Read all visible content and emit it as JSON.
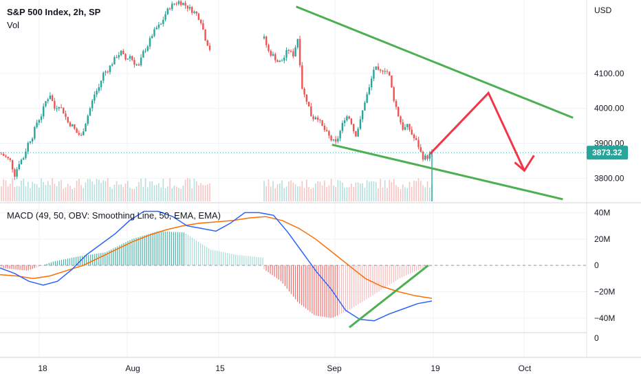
{
  "header": {
    "symbol_title": "S&P 500 Index, 2h, SP",
    "volume_label": "Vol",
    "indicator_label": "MACD (49, 50, OBV: Smoothing Line, 50, EMA, EMA)"
  },
  "price_axis": {
    "currency": "USD",
    "ticks": [
      {
        "value": 4100,
        "label": "4100.00"
      },
      {
        "value": 4000,
        "label": "4000.00"
      },
      {
        "value": 3900,
        "label": "3900.00"
      },
      {
        "value": 3800,
        "label": "3800.00"
      }
    ],
    "last_price": {
      "value": 3873.32,
      "label": "3873.32"
    }
  },
  "indicator_axis": {
    "ticks": [
      {
        "value": 40,
        "label": "40M"
      },
      {
        "value": 20,
        "label": "20M"
      },
      {
        "value": 0,
        "label": "0"
      },
      {
        "value": -20,
        "label": "−20M"
      },
      {
        "value": -40,
        "label": "−40M"
      }
    ],
    "extra_tick": "0"
  },
  "time_axis": {
    "labels": [
      "18",
      "Aug",
      "15",
      "Sep",
      "19",
      "Oct"
    ]
  },
  "colors": {
    "up": "#26a69a",
    "down": "#ef5350",
    "macd": "#2962ff",
    "signal": "#ff6d00",
    "trendline": "#4caf50",
    "projection": "#f23645",
    "last_price_badge": "#26a69a"
  },
  "chart_data": {
    "type": "candlestick",
    "price_anchors": [
      [
        3870,
        3860
      ],
      [
        3850,
        3810
      ],
      [
        3845,
        3860
      ],
      [
        3900,
        3920
      ],
      [
        3960,
        3980
      ],
      [
        4020,
        4040
      ],
      [
        4000,
        4010
      ],
      [
        3990,
        3960
      ],
      [
        3950,
        3930
      ],
      [
        3920,
        3960
      ],
      [
        4000,
        4040
      ],
      [
        4060,
        4100
      ],
      [
        4110,
        4130
      ],
      [
        4150,
        4160
      ],
      [
        4140,
        4150
      ],
      [
        4130,
        4120
      ],
      [
        4160,
        4180
      ],
      [
        4210,
        4230
      ],
      [
        4240,
        4270
      ],
      [
        4290,
        4300
      ],
      [
        4305,
        4300
      ],
      [
        4290,
        4280
      ],
      [
        4270,
        4250
      ],
      [
        4200,
        4170
      ],
      [
        4200,
        4160
      ],
      [
        4150,
        4130
      ],
      [
        4140,
        4170
      ],
      [
        4150,
        4200
      ],
      [
        4050,
        4020
      ],
      [
        3970,
        3980
      ],
      [
        3950,
        3930
      ],
      [
        3910,
        3900
      ],
      [
        3940,
        3980
      ],
      [
        3970,
        3920
      ],
      [
        3960,
        4020
      ],
      [
        4060,
        4120
      ],
      [
        4100,
        4115
      ],
      [
        4100,
        4030
      ],
      [
        3980,
        3940
      ],
      [
        3950,
        3920
      ],
      [
        3900,
        3860
      ],
      [
        3860,
        3873
      ]
    ],
    "macd_line": [
      -2,
      -6,
      -12,
      -15,
      -12,
      -3,
      8,
      16,
      24,
      34,
      41,
      41,
      37,
      30,
      28,
      26,
      32,
      40,
      40,
      38,
      25,
      10,
      -5,
      -18,
      -34,
      -41,
      -42,
      -37,
      -33,
      -29,
      -27
    ],
    "signal_line": [
      -7,
      -8,
      -10,
      -8,
      -4,
      0,
      6,
      12,
      18,
      23,
      27,
      30,
      32,
      33,
      34,
      36,
      37,
      34,
      28,
      20,
      10,
      0,
      -10,
      -16,
      -20,
      -23,
      -25
    ],
    "histogram_start": [
      -2,
      -4,
      3,
      7,
      10,
      20,
      26,
      25,
      12,
      8,
      6
    ],
    "histogram_end": [
      -3,
      -12,
      -28,
      -38,
      -40,
      -34,
      -26,
      -18,
      -10,
      -4,
      0
    ],
    "last_price": 3873.32,
    "price_range": [
      3730,
      4310
    ],
    "indicator_range": [
      -51,
      47
    ],
    "price_channel": {
      "upper": [
        [
          0.462,
          4291
        ],
        [
          0.894,
          3973
        ]
      ],
      "lower": [
        [
          0.518,
          3896
        ],
        [
          0.878,
          3740
        ]
      ]
    },
    "projection_path": [
      [
        0.671,
        3870
      ],
      [
        0.762,
        4044
      ],
      [
        0.818,
        3822
      ]
    ],
    "macd_divergence_line": [
      [
        0.545,
        -47
      ],
      [
        0.668,
        0
      ]
    ],
    "legend": "none",
    "grid": true
  }
}
